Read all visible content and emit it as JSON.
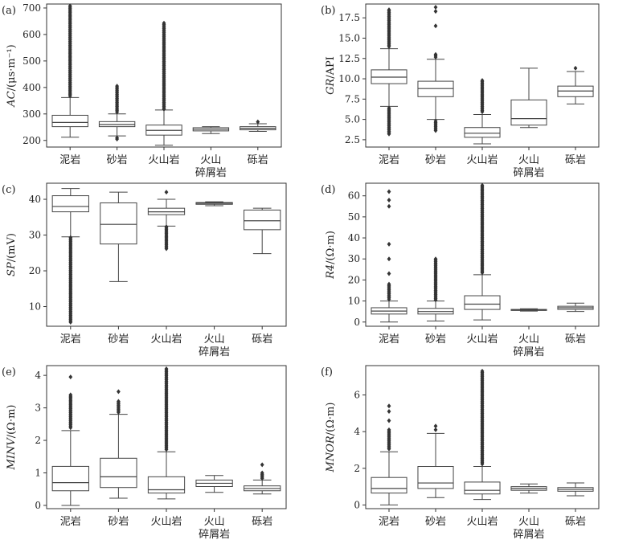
{
  "chart_data": [
    {
      "type": "box",
      "label": "(a)",
      "ylabel": "AC/(μs·m⁻¹)",
      "categories": [
        "泥岩",
        "砂岩",
        "火山岩",
        "火山|碎屑岩",
        "砾岩"
      ],
      "ylim": [
        175,
        715
      ],
      "yticks": [
        200,
        300,
        400,
        500,
        600,
        700
      ],
      "boxes": [
        {
          "min": 212,
          "q1": 252,
          "median": 268,
          "q3": 295,
          "max": 362,
          "outliers_from": 365,
          "outliers_to": 708
        },
        {
          "min": 217,
          "q1": 252,
          "median": 260,
          "q3": 271,
          "max": 300,
          "outliers_from": 302,
          "outliers_to": 405,
          "outliers_low": [
            205,
            210
          ]
        },
        {
          "min": 182,
          "q1": 220,
          "median": 238,
          "q3": 258,
          "max": 315,
          "outliers_from": 318,
          "outliers_to": 643
        },
        {
          "min": 226,
          "q1": 236,
          "median": 242,
          "q3": 248,
          "max": 252
        },
        {
          "min": 234,
          "q1": 240,
          "median": 246,
          "q3": 252,
          "max": 263,
          "outliers_high": [
            270
          ]
        }
      ]
    },
    {
      "type": "box",
      "label": "(b)",
      "ylabel": "GR/API",
      "categories": [
        "泥岩",
        "砂岩",
        "火山岩",
        "火山|碎屑岩",
        "砾岩"
      ],
      "ylim": [
        1.6,
        19.2
      ],
      "yticks": [
        2.5,
        5.0,
        7.5,
        10.0,
        12.5,
        15.0,
        17.5
      ],
      "boxes": [
        {
          "min": 6.6,
          "q1": 9.4,
          "median": 10.2,
          "q3": 11.1,
          "max": 13.7,
          "outliers_from": 13.9,
          "outliers_to": 18.5,
          "outliers_low_from": 3.2,
          "outliers_low_to": 6.4
        },
        {
          "min": 5.0,
          "q1": 7.8,
          "median": 8.8,
          "q3": 9.7,
          "max": 12.4,
          "outliers_from": 12.6,
          "outliers_to": 13.0,
          "outliers_high": [
            16.5,
            18.8,
            18.3
          ],
          "outliers_low_from": 3.5,
          "outliers_low_to": 4.8
        },
        {
          "min": 2.0,
          "q1": 2.8,
          "median": 3.3,
          "q3": 4.0,
          "max": 5.6,
          "outliers_from": 5.8,
          "outliers_to": 9.8
        },
        {
          "min": 4.0,
          "q1": 4.3,
          "median": 5.1,
          "q3": 7.4,
          "max": 11.3
        },
        {
          "min": 6.9,
          "q1": 7.8,
          "median": 8.5,
          "q3": 9.1,
          "max": 10.9,
          "outliers_high": [
            11.3
          ]
        }
      ]
    },
    {
      "type": "box",
      "label": "(c)",
      "ylabel": "SP/(mV)",
      "categories": [
        "泥岩",
        "砂岩",
        "火山岩",
        "火山|碎屑岩",
        "砾岩"
      ],
      "ylim": [
        4.5,
        44.5
      ],
      "yticks": [
        10,
        20,
        30,
        40
      ],
      "boxes": [
        {
          "min": 29.5,
          "q1": 36.5,
          "median": 38.0,
          "q3": 41.0,
          "max": 43.0,
          "outliers_from": 5.5,
          "outliers_to": 29.3
        },
        {
          "min": 17.0,
          "q1": 27.5,
          "median": 33.0,
          "q3": 39.0,
          "max": 42.0
        },
        {
          "min": 32.5,
          "q1": 35.7,
          "median": 36.5,
          "q3": 37.5,
          "max": 40.0,
          "outliers_from": 26.0,
          "outliers_to": 32.3,
          "outliers_high": [
            42.0
          ]
        },
        {
          "min": 38.2,
          "q1": 38.6,
          "median": 38.9,
          "q3": 39.1,
          "max": 39.3
        },
        {
          "min": 24.8,
          "q1": 31.5,
          "median": 34.0,
          "q3": 37.0,
          "max": 37.5
        }
      ]
    },
    {
      "type": "box",
      "label": "(d)",
      "ylabel": "R4/(Ω·m)",
      "categories": [
        "泥岩",
        "砂岩",
        "火山岩",
        "火山|碎屑岩",
        "砾岩"
      ],
      "ylim": [
        -2,
        66
      ],
      "yticks": [
        0,
        10,
        20,
        30,
        40,
        50,
        60
      ],
      "boxes": [
        {
          "min": 0,
          "q1": 3.8,
          "median": 5.2,
          "q3": 6.8,
          "max": 10.0,
          "outliers_from": 10.5,
          "outliers_to": 18.0,
          "outliers_high": [
            23,
            30,
            37,
            55,
            58,
            62
          ]
        },
        {
          "min": 0.5,
          "q1": 3.8,
          "median": 5.0,
          "q3": 6.5,
          "max": 10.0,
          "outliers_from": 10.5,
          "outliers_to": 30.0
        },
        {
          "min": 1.0,
          "q1": 6.0,
          "median": 8.5,
          "q3": 12.5,
          "max": 22.5,
          "outliers_from": 23.0,
          "outliers_to": 65.0
        },
        {
          "min": 5.2,
          "q1": 5.5,
          "median": 5.7,
          "q3": 6.0,
          "max": 6.3
        },
        {
          "min": 5.0,
          "q1": 6.0,
          "median": 6.8,
          "q3": 7.5,
          "max": 9.0
        }
      ]
    },
    {
      "type": "box",
      "label": "(e)",
      "ylabel": "MINV/(Ω·m)",
      "categories": [
        "泥岩",
        "砂岩",
        "火山岩",
        "火山|碎屑岩",
        "砾岩"
      ],
      "ylim": [
        -0.1,
        4.3
      ],
      "yticks": [
        0,
        1,
        2,
        3,
        4
      ],
      "boxes": [
        {
          "min": 0.0,
          "q1": 0.45,
          "median": 0.7,
          "q3": 1.2,
          "max": 2.3,
          "outliers_from": 2.35,
          "outliers_to": 3.4,
          "outliers_high": [
            3.95
          ]
        },
        {
          "min": 0.22,
          "q1": 0.55,
          "median": 0.88,
          "q3": 1.45,
          "max": 2.8,
          "outliers_from": 2.85,
          "outliers_to": 3.2,
          "outliers_high": [
            3.5
          ]
        },
        {
          "min": 0.2,
          "q1": 0.38,
          "median": 0.48,
          "q3": 0.88,
          "max": 1.65,
          "outliers_from": 1.7,
          "outliers_to": 4.2
        },
        {
          "min": 0.4,
          "q1": 0.58,
          "median": 0.68,
          "q3": 0.78,
          "max": 0.92
        },
        {
          "min": 0.35,
          "q1": 0.45,
          "median": 0.52,
          "q3": 0.6,
          "max": 0.78,
          "outliers_from": 0.82,
          "outliers_to": 1.0,
          "outliers_high": [
            1.25
          ]
        }
      ]
    },
    {
      "type": "box",
      "label": "(f)",
      "ylabel": "MNOR/(Ω·m)",
      "categories": [
        "泥岩",
        "砂岩",
        "火山岩",
        "火山|碎屑岩",
        "砾岩"
      ],
      "ylim": [
        -0.2,
        7.6
      ],
      "yticks": [
        0,
        2,
        4,
        6
      ],
      "boxes": [
        {
          "min": 0.0,
          "q1": 0.65,
          "median": 0.9,
          "q3": 1.5,
          "max": 2.9,
          "outliers_from": 3.0,
          "outliers_to": 4.1,
          "outliers_high": [
            4.6,
            5.1,
            5.4
          ]
        },
        {
          "min": 0.4,
          "q1": 0.9,
          "median": 1.2,
          "q3": 2.1,
          "max": 3.9,
          "outliers_high": [
            4.1,
            4.3
          ]
        },
        {
          "min": 0.3,
          "q1": 0.6,
          "median": 0.8,
          "q3": 1.25,
          "max": 2.1,
          "outliers_from": 2.2,
          "outliers_to": 7.3
        },
        {
          "min": 0.65,
          "q1": 0.8,
          "median": 0.9,
          "q3": 1.0,
          "max": 1.15
        },
        {
          "min": 0.5,
          "q1": 0.75,
          "median": 0.85,
          "q3": 0.95,
          "max": 1.2
        }
      ]
    }
  ]
}
